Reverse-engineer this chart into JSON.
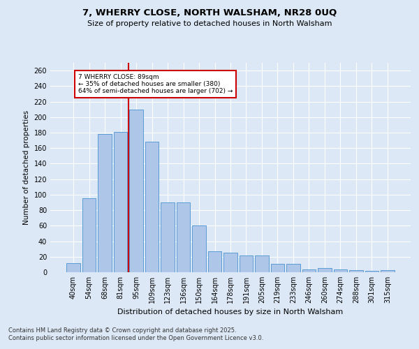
{
  "title1": "7, WHERRY CLOSE, NORTH WALSHAM, NR28 0UQ",
  "title2": "Size of property relative to detached houses in North Walsham",
  "xlabel": "Distribution of detached houses by size in North Walsham",
  "ylabel": "Number of detached properties",
  "categories": [
    "40sqm",
    "54sqm",
    "68sqm",
    "81sqm",
    "95sqm",
    "109sqm",
    "123sqm",
    "136sqm",
    "150sqm",
    "164sqm",
    "178sqm",
    "191sqm",
    "205sqm",
    "219sqm",
    "233sqm",
    "246sqm",
    "260sqm",
    "274sqm",
    "288sqm",
    "301sqm",
    "315sqm"
  ],
  "values": [
    12,
    95,
    178,
    181,
    210,
    168,
    90,
    90,
    60,
    27,
    25,
    22,
    22,
    11,
    11,
    4,
    5,
    4,
    3,
    2,
    3
  ],
  "bar_color": "#aec6e8",
  "bar_edge_color": "#5b9bd5",
  "vline_x": 3.5,
  "vline_color": "#cc0000",
  "annotation_text": "7 WHERRY CLOSE: 89sqm\n← 35% of detached houses are smaller (380)\n64% of semi-detached houses are larger (702) →",
  "annotation_box_color": "#cc0000",
  "ylim": [
    0,
    270
  ],
  "yticks": [
    0,
    20,
    40,
    60,
    80,
    100,
    120,
    140,
    160,
    180,
    200,
    220,
    240,
    260
  ],
  "footer1": "Contains HM Land Registry data © Crown copyright and database right 2025.",
  "footer2": "Contains public sector information licensed under the Open Government Licence v3.0.",
  "bg_color": "#dce8f5",
  "plot_bg_color": "#dce8f5"
}
